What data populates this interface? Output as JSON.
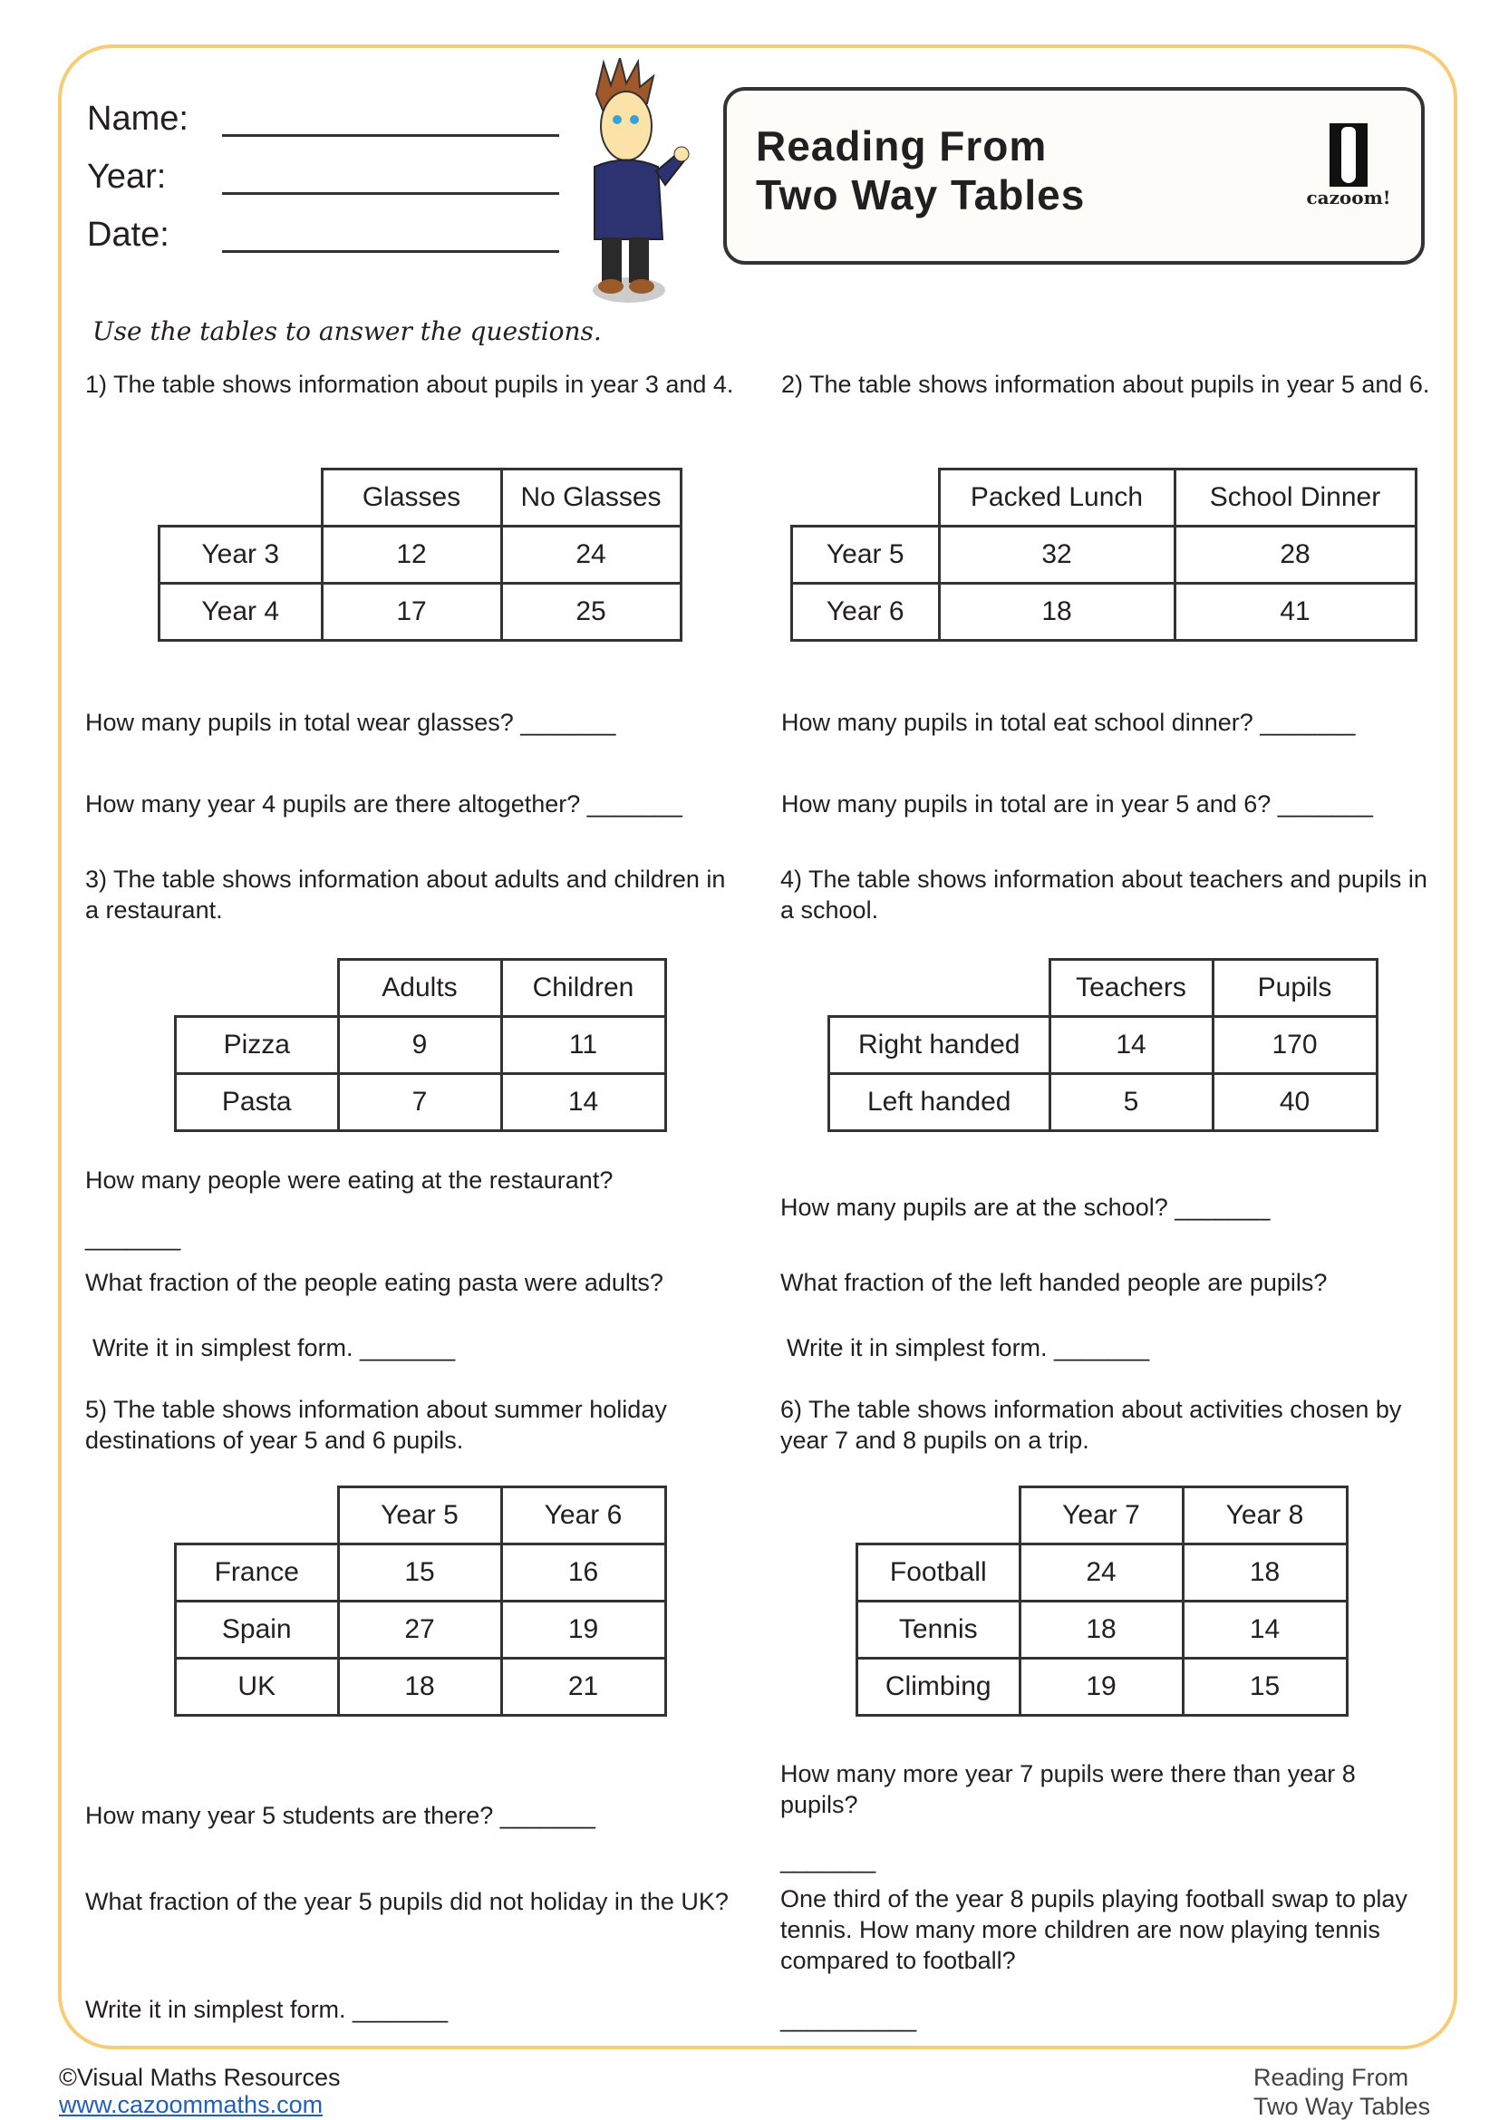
{
  "header": {
    "name_label": "Name:",
    "year_label": "Year:",
    "date_label": "Date:",
    "title_line1": "Reading From",
    "title_line2": "Two Way Tables",
    "logo_text": "cazoom!"
  },
  "instruction": "Use the tables to answer the questions.",
  "q1": {
    "text": "1) The table shows information about pupils in year 3 and 4.",
    "cols": [
      "Glasses",
      "No Glasses"
    ],
    "rows": [
      [
        "Year 3",
        "12",
        "24"
      ],
      [
        "Year 4",
        "17",
        "25"
      ]
    ],
    "a": "How many pupils in total wear glasses? _______",
    "b": "How many year 4 pupils are there altogether? _______"
  },
  "q2": {
    "text": "2) The table shows information about pupils in year 5 and 6.",
    "cols": [
      "Packed Lunch",
      "School Dinner"
    ],
    "rows": [
      [
        "Year 5",
        "32",
        "28"
      ],
      [
        "Year 6",
        "18",
        "41"
      ]
    ],
    "a": "How many pupils in total eat school dinner? _______",
    "b": "How many pupils in total are in year 5 and 6? _______"
  },
  "q3": {
    "text": "3) The table shows information about adults and children in a restaurant.",
    "cols": [
      "Adults",
      "Children"
    ],
    "rows": [
      [
        "Pizza",
        "9",
        "11"
      ],
      [
        "Pasta",
        "7",
        "14"
      ]
    ],
    "a": "How many people were eating at the restaurant?",
    "a_blank": "_______",
    "b": "What fraction of the people eating pasta were adults?",
    "c": "Write it in simplest form. _______"
  },
  "q4": {
    "text": "4) The table shows information about teachers and pupils in a school.",
    "cols": [
      "Teachers",
      "Pupils"
    ],
    "rows": [
      [
        "Right handed",
        "14",
        "170"
      ],
      [
        "Left handed",
        "5",
        "40"
      ]
    ],
    "a": "How many pupils are at the school? _______",
    "b": "What fraction of the left handed people are pupils?",
    "c": "Write it in simplest form. _______"
  },
  "q5": {
    "text": "5) The table shows information about summer holiday destinations of year 5 and 6 pupils.",
    "cols": [
      "Year 5",
      "Year 6"
    ],
    "rows": [
      [
        "France",
        "15",
        "16"
      ],
      [
        "Spain",
        "27",
        "19"
      ],
      [
        "UK",
        "18",
        "21"
      ]
    ],
    "a": "How many year 5 students are there? _______",
    "b": "What fraction of the year 5 pupils did not holiday in the UK?",
    "c": "Write it in simplest form. _______"
  },
  "q6": {
    "text": "6) The table shows information about activities chosen by year 7 and 8 pupils on a trip.",
    "cols": [
      "Year 7",
      "Year 8"
    ],
    "rows": [
      [
        "Football",
        "24",
        "18"
      ],
      [
        "Tennis",
        "18",
        "14"
      ],
      [
        "Climbing",
        "19",
        "15"
      ]
    ],
    "a": "How many more year 7 pupils were there than year 8 pupils?",
    "a_blank": "_______",
    "b": "One third of the year 8 pupils playing football swap to play tennis. How many more children are now playing tennis compared to football?",
    "b_blank": "__________"
  },
  "footer": {
    "copyright": "©Visual Maths Resources",
    "link": "www.cazoommaths.com",
    "right1": "Reading From",
    "right2": "Two Way Tables"
  }
}
